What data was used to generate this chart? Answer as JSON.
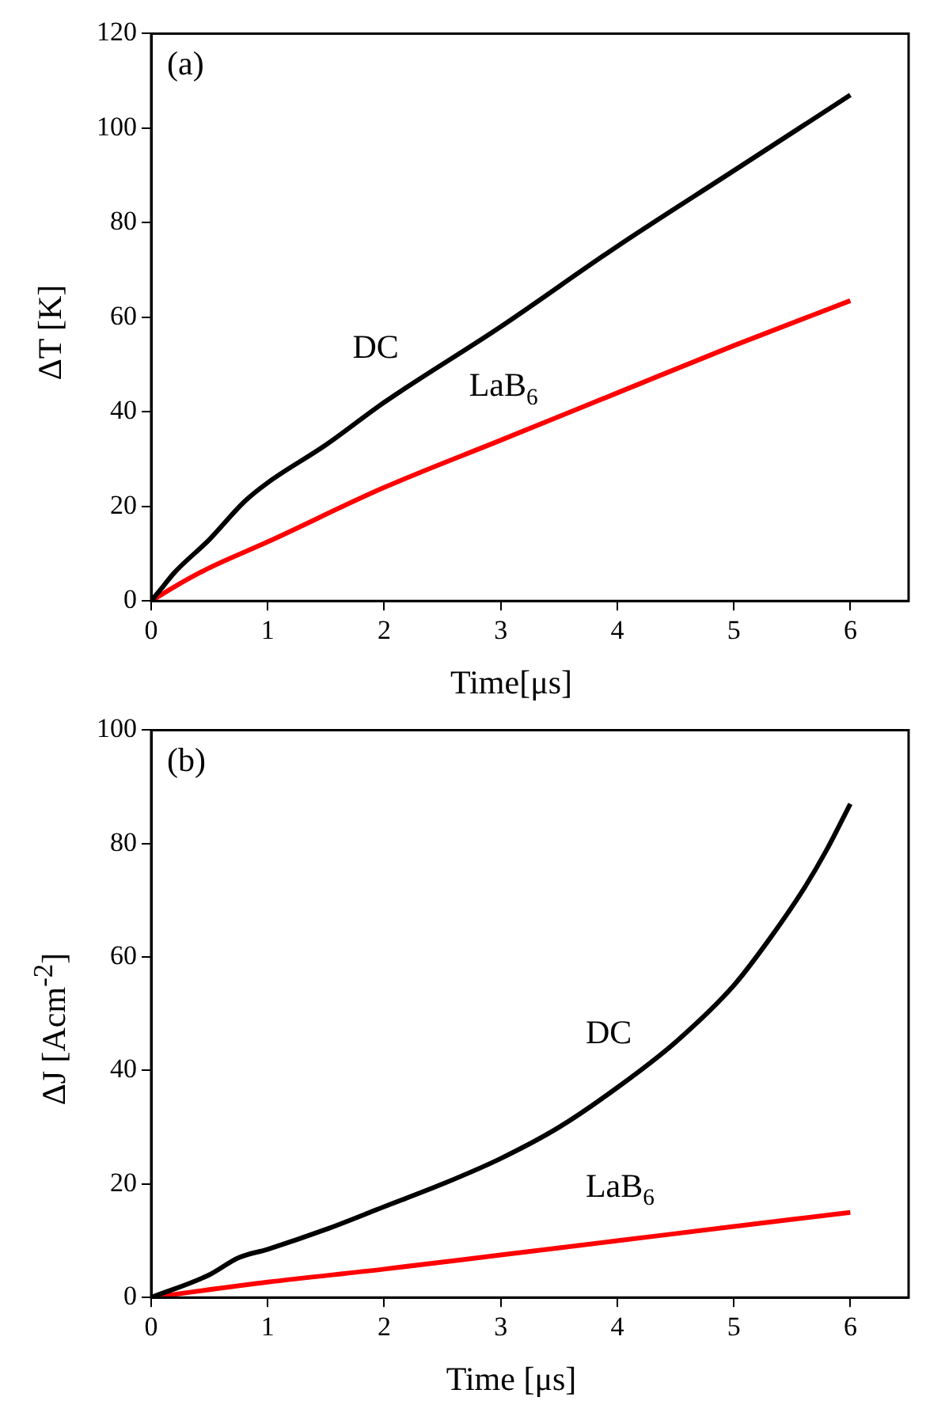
{
  "chart_data": [
    {
      "type": "line",
      "xlabel": "Time[μs]",
      "ylabel": "ΔT [K]",
      "annotations": [
        "(a)"
      ],
      "xlim": [
        0,
        6.5
      ],
      "xticks": [
        0,
        1,
        2,
        3,
        4,
        5,
        6
      ],
      "ylim": [
        0,
        120
      ],
      "yticks": [
        0,
        20,
        40,
        60,
        80,
        100,
        120
      ],
      "grid": false,
      "legend": false,
      "marker": "none",
      "line_style": "solid",
      "series": [
        {
          "name": "DC",
          "color": "#000000",
          "x": [
            0,
            0.1,
            0.2,
            0.5,
            0.8,
            1,
            1.5,
            2,
            3,
            4,
            5,
            6
          ],
          "values": [
            0,
            3,
            6,
            13,
            21,
            25,
            33,
            42,
            58,
            75,
            91,
            107
          ]
        },
        {
          "name": "LaB$_{6}$",
          "color": "#ff0000",
          "x": [
            0,
            0.2,
            0.5,
            1,
            2,
            3,
            4,
            5,
            6
          ],
          "values": [
            0,
            3,
            7,
            12.5,
            24,
            34,
            44,
            54,
            63.5
          ]
        }
      ]
    },
    {
      "type": "line",
      "xlabel": "Time [μs]",
      "ylabel": "ΔJ [Acm$^{-2}$]",
      "annotations": [
        "(b)"
      ],
      "xlim": [
        0,
        6.5
      ],
      "xticks": [
        0,
        1,
        2,
        3,
        4,
        5,
        6
      ],
      "ylim": [
        0,
        100
      ],
      "yticks": [
        0,
        20,
        40,
        60,
        80,
        100
      ],
      "grid": false,
      "legend": false,
      "marker": "none",
      "line_style": "solid",
      "series": [
        {
          "name": "DC",
          "color": "#000000",
          "x": [
            0,
            0.5,
            0.75,
            1,
            1.5,
            2,
            2.5,
            3,
            3.5,
            4,
            4.5,
            5,
            5.3,
            5.6,
            5.8,
            6
          ],
          "values": [
            0,
            4,
            7,
            8.5,
            12,
            16,
            20,
            24.5,
            30,
            37,
            45,
            55,
            63,
            72,
            79,
            87
          ]
        },
        {
          "name": "LaB$_{6}$",
          "color": "#ff0000",
          "x": [
            0,
            1,
            2,
            3,
            4,
            5,
            6
          ],
          "values": [
            0,
            2.7,
            5,
            7.5,
            10,
            12.5,
            15
          ]
        }
      ]
    }
  ]
}
